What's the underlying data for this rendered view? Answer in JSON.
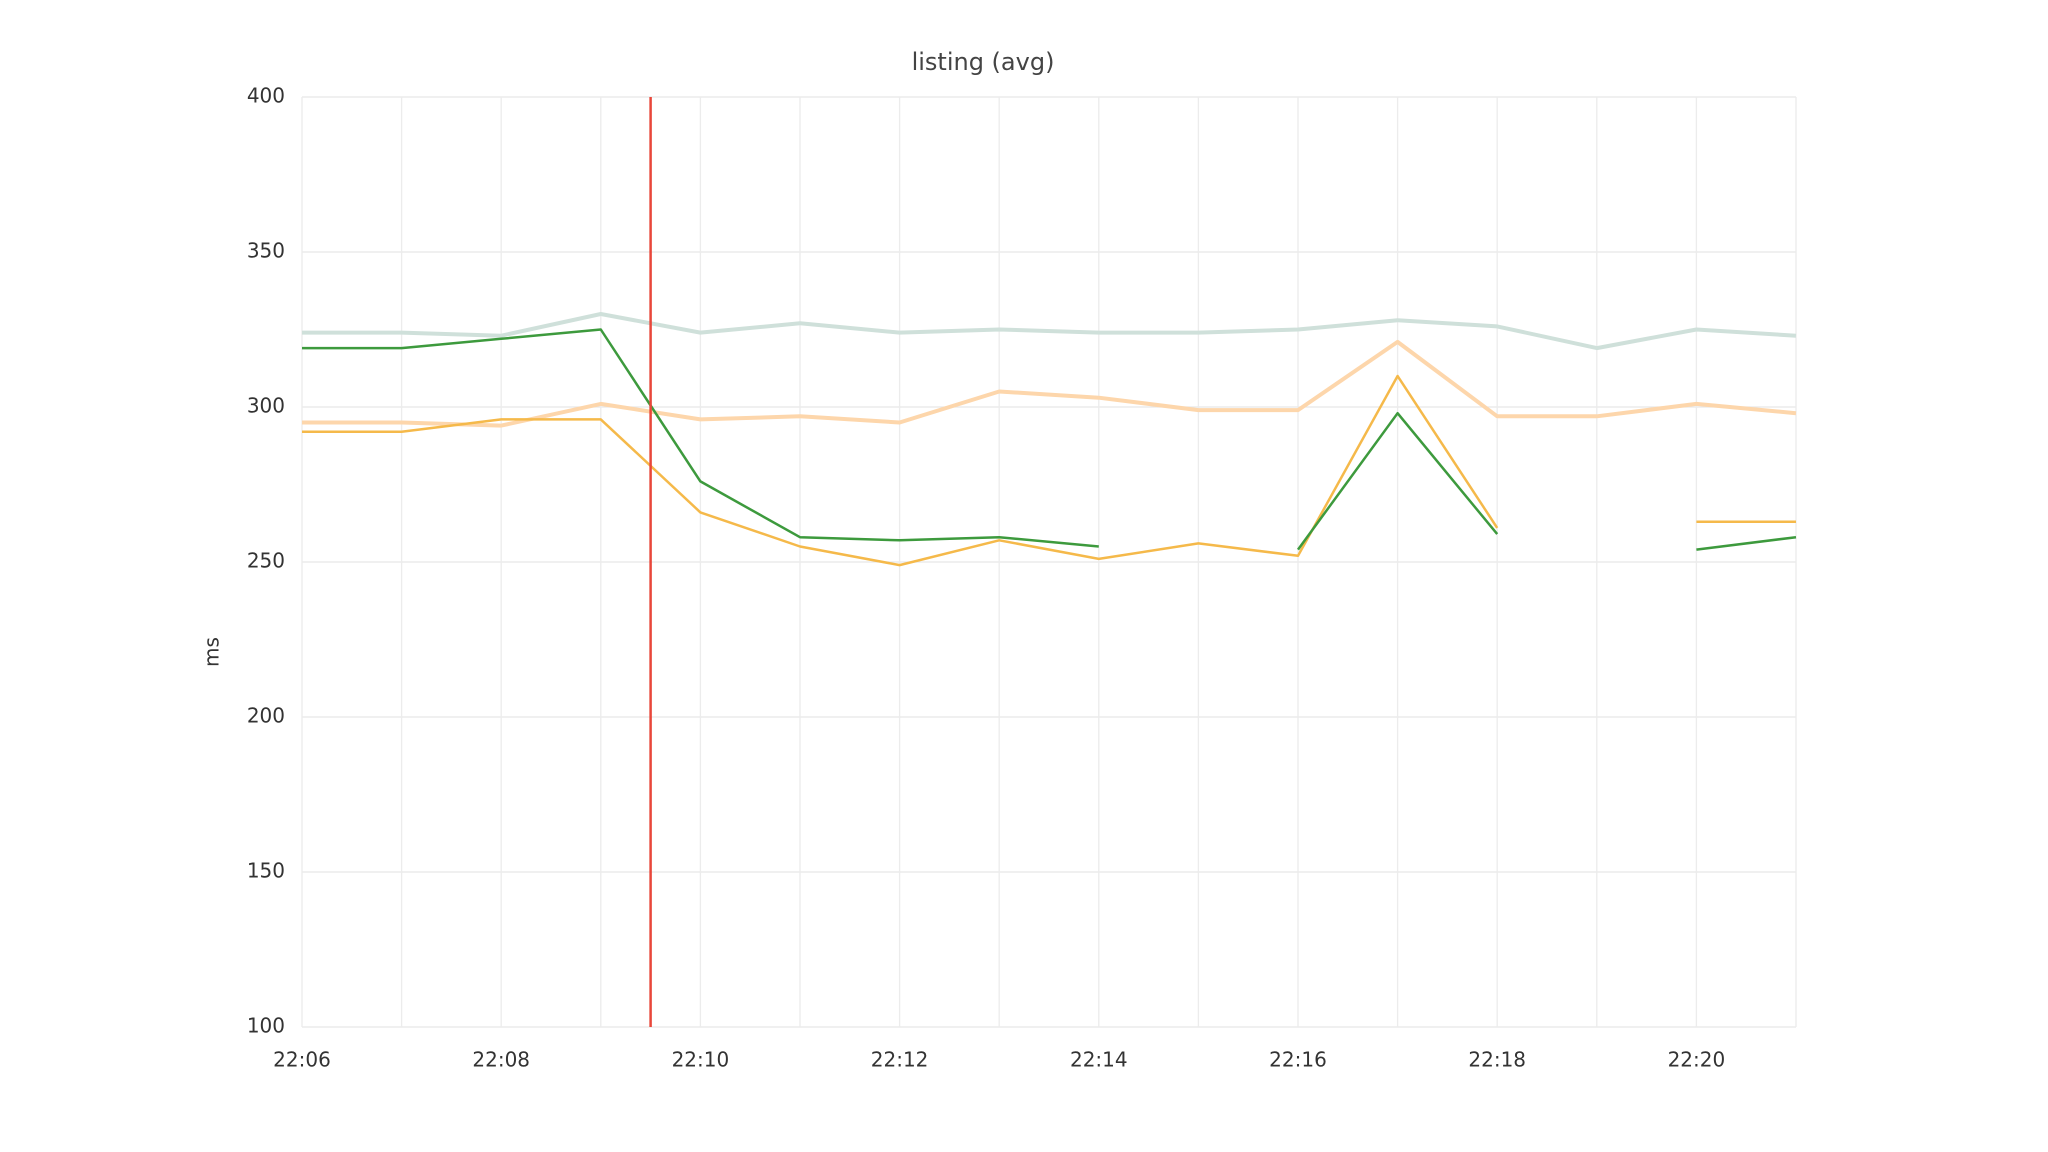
{
  "chart_data": {
    "type": "line",
    "title": "listing (avg)",
    "y_label": "ms",
    "x": [
      "22:06",
      "22:07",
      "22:08",
      "22:09",
      "22:10",
      "22:11",
      "22:12",
      "22:13",
      "22:14",
      "22:15",
      "22:16",
      "22:17",
      "22:18",
      "22:19",
      "22:20",
      "22:21"
    ],
    "xlim": [
      "22:06",
      "22:21"
    ],
    "xticks": [
      "22:06",
      "22:08",
      "22:10",
      "22:12",
      "22:14",
      "22:16",
      "22:18",
      "22:20"
    ],
    "ylim": [
      100,
      400
    ],
    "yticks": [
      100,
      150,
      200,
      250,
      300,
      350,
      400
    ],
    "grid": true,
    "vline": {
      "x": "22:09:30",
      "color": "#e8473a"
    },
    "series": [
      {
        "color": "#cfe0da",
        "width": 4,
        "values": [
          324,
          324,
          323,
          330,
          324,
          327,
          324,
          325,
          324,
          324,
          325,
          328,
          326,
          319,
          325,
          323
        ]
      },
      {
        "color": "#fdd6ab",
        "width": 4,
        "values": [
          295,
          295,
          294,
          301,
          296,
          297,
          295,
          305,
          303,
          299,
          299,
          321,
          297,
          297,
          301,
          298
        ]
      },
      {
        "color": "#f5b94a",
        "width": 2.5,
        "values": [
          292,
          292,
          296,
          296,
          266,
          255,
          249,
          257,
          251,
          256,
          252,
          310,
          261,
          null,
          263,
          263
        ]
      },
      {
        "color": "#3d9a3d",
        "width": 2.5,
        "values": [
          319,
          319,
          322,
          325,
          276,
          258,
          257,
          258,
          255,
          null,
          254,
          298,
          259,
          null,
          254,
          258
        ]
      }
    ]
  }
}
